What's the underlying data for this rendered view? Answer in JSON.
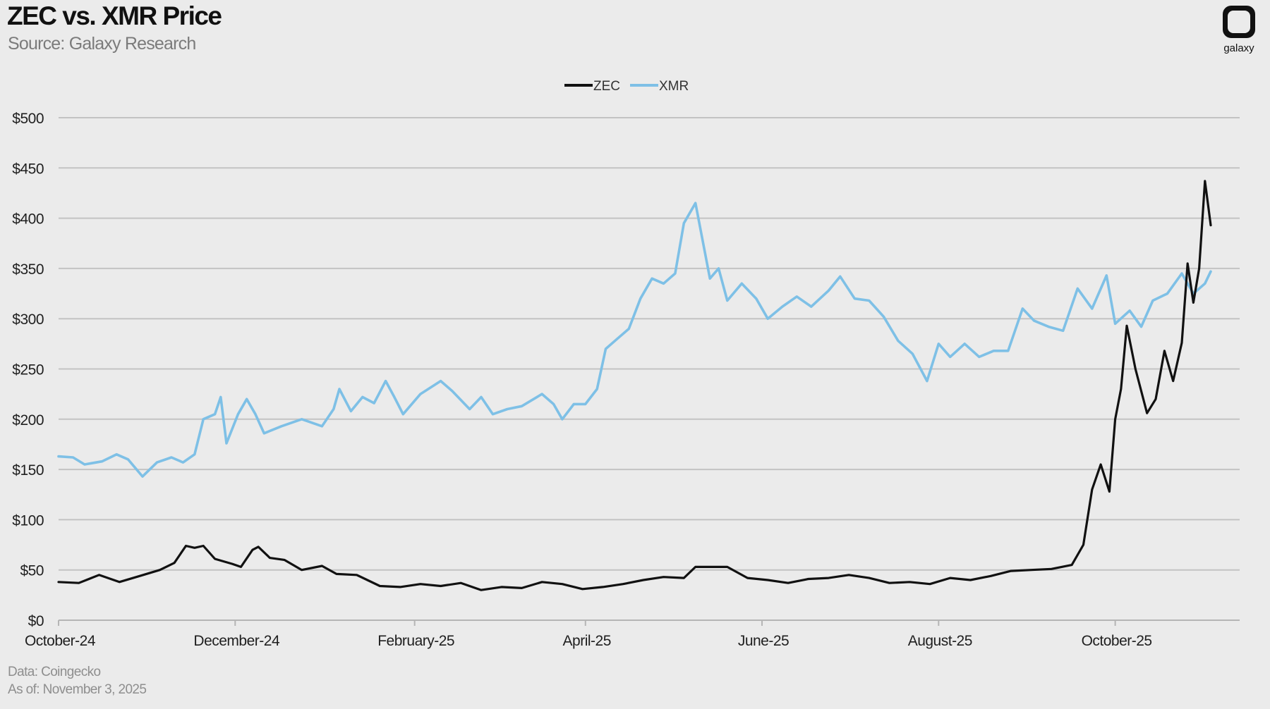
{
  "header": {
    "title": "ZEC vs. XMR Price",
    "subtitle": "Source: Galaxy Research",
    "logo_text": "galaxy"
  },
  "footer": {
    "line1": "Data: Coingecko",
    "line2": "As of: November 3, 2025"
  },
  "colors": {
    "zec": "#111111",
    "xmr": "#7ec0e6",
    "grid": "#c3c3c3",
    "background": "#ebebeb"
  },
  "chart_data": {
    "type": "line",
    "title": "ZEC vs. XMR Price",
    "xlabel": "",
    "ylabel": "",
    "ylim": [
      0,
      500
    ],
    "yticks": [
      0,
      50,
      100,
      150,
      200,
      250,
      300,
      350,
      400,
      450,
      500
    ],
    "ytick_labels": [
      "$0",
      "$50",
      "$100",
      "$150",
      "$200",
      "$250",
      "$300",
      "$350",
      "$400",
      "$450",
      "$500"
    ],
    "xlim": [
      "2024-10-01",
      "2025-11-03"
    ],
    "xticks": [
      "2024-10-01",
      "2024-12-01",
      "2025-02-01",
      "2025-04-01",
      "2025-06-01",
      "2025-08-01",
      "2025-10-01"
    ],
    "xtick_labels": [
      "October-24",
      "December-24",
      "February-25",
      "April-25",
      "June-25",
      "August-25",
      "October-25"
    ],
    "grid": true,
    "legend": "top-center",
    "series": [
      {
        "name": "ZEC",
        "color": "#111111",
        "points": [
          [
            "2024-10-01",
            38
          ],
          [
            "2024-10-08",
            37
          ],
          [
            "2024-10-15",
            45
          ],
          [
            "2024-10-22",
            38
          ],
          [
            "2024-10-29",
            44
          ],
          [
            "2024-11-05",
            50
          ],
          [
            "2024-11-10",
            57
          ],
          [
            "2024-11-14",
            74
          ],
          [
            "2024-11-17",
            72
          ],
          [
            "2024-11-20",
            74
          ],
          [
            "2024-11-24",
            61
          ],
          [
            "2024-11-30",
            56
          ],
          [
            "2024-12-03",
            53
          ],
          [
            "2024-12-07",
            70
          ],
          [
            "2024-12-09",
            73
          ],
          [
            "2024-12-13",
            62
          ],
          [
            "2024-12-18",
            60
          ],
          [
            "2024-12-24",
            50
          ],
          [
            "2024-12-31",
            54
          ],
          [
            "2025-01-05",
            46
          ],
          [
            "2025-01-12",
            45
          ],
          [
            "2025-01-20",
            34
          ],
          [
            "2025-01-27",
            33
          ],
          [
            "2025-02-03",
            36
          ],
          [
            "2025-02-10",
            34
          ],
          [
            "2025-02-17",
            37
          ],
          [
            "2025-02-24",
            30
          ],
          [
            "2025-03-03",
            33
          ],
          [
            "2025-03-10",
            32
          ],
          [
            "2025-03-17",
            38
          ],
          [
            "2025-03-24",
            36
          ],
          [
            "2025-03-31",
            31
          ],
          [
            "2025-04-07",
            33
          ],
          [
            "2025-04-14",
            36
          ],
          [
            "2025-04-21",
            40
          ],
          [
            "2025-04-28",
            43
          ],
          [
            "2025-05-05",
            42
          ],
          [
            "2025-05-09",
            53
          ],
          [
            "2025-05-14",
            53
          ],
          [
            "2025-05-20",
            53
          ],
          [
            "2025-05-27",
            42
          ],
          [
            "2025-06-03",
            40
          ],
          [
            "2025-06-10",
            37
          ],
          [
            "2025-06-17",
            41
          ],
          [
            "2025-06-24",
            42
          ],
          [
            "2025-07-01",
            45
          ],
          [
            "2025-07-08",
            42
          ],
          [
            "2025-07-15",
            37
          ],
          [
            "2025-07-22",
            38
          ],
          [
            "2025-07-29",
            36
          ],
          [
            "2025-08-05",
            42
          ],
          [
            "2025-08-12",
            40
          ],
          [
            "2025-08-19",
            44
          ],
          [
            "2025-08-26",
            49
          ],
          [
            "2025-09-02",
            50
          ],
          [
            "2025-09-09",
            51
          ],
          [
            "2025-09-16",
            55
          ],
          [
            "2025-09-20",
            75
          ],
          [
            "2025-09-23",
            130
          ],
          [
            "2025-09-26",
            155
          ],
          [
            "2025-09-29",
            128
          ],
          [
            "2025-10-01",
            200
          ],
          [
            "2025-10-03",
            230
          ],
          [
            "2025-10-05",
            293
          ],
          [
            "2025-10-08",
            250
          ],
          [
            "2025-10-12",
            206
          ],
          [
            "2025-10-15",
            220
          ],
          [
            "2025-10-18",
            268
          ],
          [
            "2025-10-21",
            238
          ],
          [
            "2025-10-24",
            276
          ],
          [
            "2025-10-26",
            355
          ],
          [
            "2025-10-28",
            316
          ],
          [
            "2025-10-30",
            350
          ],
          [
            "2025-11-01",
            437
          ],
          [
            "2025-11-03",
            393
          ]
        ]
      },
      {
        "name": "XMR",
        "color": "#7ec0e6",
        "points": [
          [
            "2024-10-01",
            163
          ],
          [
            "2024-10-06",
            162
          ],
          [
            "2024-10-10",
            155
          ],
          [
            "2024-10-16",
            158
          ],
          [
            "2024-10-21",
            165
          ],
          [
            "2024-10-25",
            160
          ],
          [
            "2024-10-30",
            143
          ],
          [
            "2024-11-04",
            157
          ],
          [
            "2024-11-09",
            162
          ],
          [
            "2024-11-13",
            157
          ],
          [
            "2024-11-17",
            165
          ],
          [
            "2024-11-20",
            200
          ],
          [
            "2024-11-24",
            205
          ],
          [
            "2024-11-26",
            222
          ],
          [
            "2024-11-28",
            176
          ],
          [
            "2024-12-02",
            205
          ],
          [
            "2024-12-05",
            220
          ],
          [
            "2024-12-08",
            205
          ],
          [
            "2024-12-11",
            186
          ],
          [
            "2024-12-17",
            193
          ],
          [
            "2024-12-24",
            200
          ],
          [
            "2024-12-31",
            193
          ],
          [
            "2025-01-04",
            210
          ],
          [
            "2025-01-06",
            230
          ],
          [
            "2025-01-10",
            208
          ],
          [
            "2025-01-14",
            222
          ],
          [
            "2025-01-18",
            216
          ],
          [
            "2025-01-22",
            238
          ],
          [
            "2025-01-25",
            222
          ],
          [
            "2025-01-28",
            205
          ],
          [
            "2025-02-03",
            225
          ],
          [
            "2025-02-10",
            238
          ],
          [
            "2025-02-14",
            228
          ],
          [
            "2025-02-20",
            210
          ],
          [
            "2025-02-24",
            222
          ],
          [
            "2025-02-28",
            205
          ],
          [
            "2025-03-05",
            210
          ],
          [
            "2025-03-10",
            213
          ],
          [
            "2025-03-17",
            225
          ],
          [
            "2025-03-21",
            215
          ],
          [
            "2025-03-24",
            200
          ],
          [
            "2025-03-28",
            215
          ],
          [
            "2025-04-01",
            215
          ],
          [
            "2025-04-05",
            230
          ],
          [
            "2025-04-08",
            270
          ],
          [
            "2025-04-12",
            280
          ],
          [
            "2025-04-16",
            290
          ],
          [
            "2025-04-20",
            320
          ],
          [
            "2025-04-24",
            340
          ],
          [
            "2025-04-28",
            335
          ],
          [
            "2025-05-02",
            345
          ],
          [
            "2025-05-05",
            395
          ],
          [
            "2025-05-09",
            415
          ],
          [
            "2025-05-14",
            340
          ],
          [
            "2025-05-17",
            350
          ],
          [
            "2025-05-20",
            318
          ],
          [
            "2025-05-25",
            335
          ],
          [
            "2025-05-30",
            320
          ],
          [
            "2025-06-03",
            300
          ],
          [
            "2025-06-08",
            312
          ],
          [
            "2025-06-13",
            322
          ],
          [
            "2025-06-18",
            312
          ],
          [
            "2025-06-24",
            328
          ],
          [
            "2025-06-28",
            342
          ],
          [
            "2025-07-03",
            320
          ],
          [
            "2025-07-08",
            318
          ],
          [
            "2025-07-13",
            302
          ],
          [
            "2025-07-18",
            278
          ],
          [
            "2025-07-23",
            265
          ],
          [
            "2025-07-28",
            238
          ],
          [
            "2025-08-01",
            275
          ],
          [
            "2025-08-05",
            262
          ],
          [
            "2025-08-10",
            275
          ],
          [
            "2025-08-15",
            262
          ],
          [
            "2025-08-20",
            268
          ],
          [
            "2025-08-25",
            268
          ],
          [
            "2025-08-30",
            310
          ],
          [
            "2025-09-03",
            298
          ],
          [
            "2025-09-08",
            292
          ],
          [
            "2025-09-13",
            288
          ],
          [
            "2025-09-18",
            330
          ],
          [
            "2025-09-23",
            310
          ],
          [
            "2025-09-28",
            343
          ],
          [
            "2025-10-01",
            295
          ],
          [
            "2025-10-06",
            308
          ],
          [
            "2025-10-10",
            292
          ],
          [
            "2025-10-14",
            318
          ],
          [
            "2025-10-19",
            325
          ],
          [
            "2025-10-24",
            345
          ],
          [
            "2025-10-28",
            325
          ],
          [
            "2025-11-01",
            335
          ],
          [
            "2025-11-03",
            347
          ]
        ]
      }
    ]
  }
}
